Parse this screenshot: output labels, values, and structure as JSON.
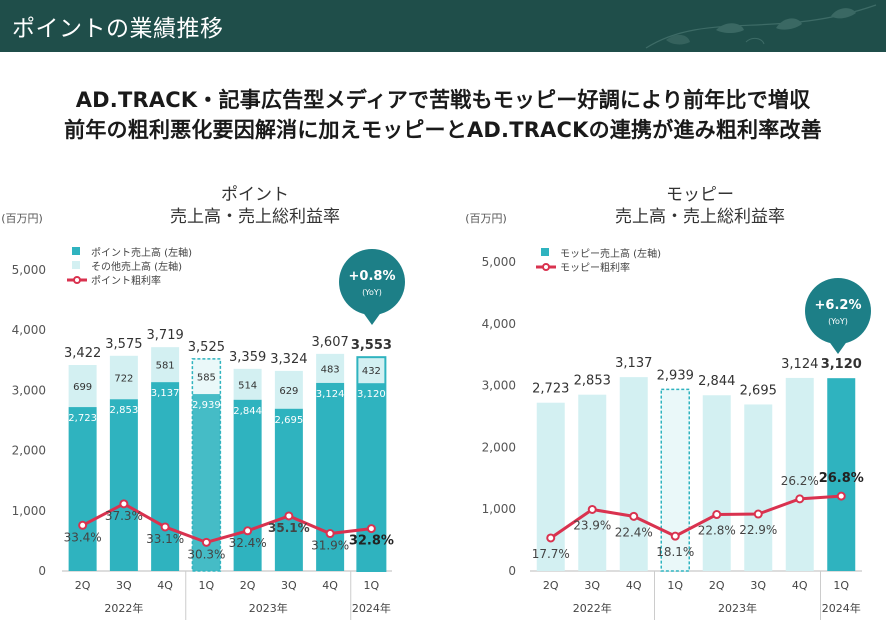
{
  "page": {
    "title": "ポイントの業績推移",
    "headline1": "AD.TRACK・記事広告型メディアで苦戦もモッピー好調により前年比で増収",
    "headline2": "前年の粗利悪化要因解消に加えモッピーとAD.TRACKの連携が進み粗利率改善"
  },
  "colors": {
    "header_bg": "#1f4e4a",
    "teal": "#2fb3bf",
    "light_teal": "#d3f0f2",
    "line_red": "#d9324f",
    "badge": "#1d7f87"
  },
  "chart_data": [
    {
      "type": "bar",
      "title": "ポイント",
      "subtitle": "売上高・売上総利益率",
      "unit": "(百万円)",
      "categories": [
        "2Q",
        "3Q",
        "4Q",
        "1Q",
        "2Q",
        "3Q",
        "4Q",
        "1Q"
      ],
      "year_groups": [
        {
          "label": "2022年",
          "start": 0,
          "end": 2
        },
        {
          "label": "2023年",
          "start": 3,
          "end": 6
        },
        {
          "label": "2024年",
          "start": 7,
          "end": 7
        }
      ],
      "ylim": [
        0,
        5000
      ],
      "yticks": [
        "0",
        "1,000",
        "2,000",
        "3,000",
        "4,000",
        "5,000"
      ],
      "legend": [
        "ポイント売上高 (左軸)",
        "その他売上高 (左軸)",
        "ポイント粗利率"
      ],
      "series": [
        {
          "name": "ポイント売上高 (左軸)",
          "values": [
            2723,
            2853,
            3137,
            2939,
            2844,
            2695,
            3124,
            3120
          ],
          "labels": [
            "2,723",
            "2,853",
            "3,137",
            "2,939",
            "2,844",
            "2,695",
            "3,124",
            "3,120"
          ]
        },
        {
          "name": "その他売上高 (左軸)",
          "values": [
            699,
            722,
            581,
            585,
            514,
            629,
            483,
            432
          ],
          "labels": [
            "699",
            "722",
            "581",
            "585",
            "514",
            "629",
            "483",
            "432"
          ]
        },
        {
          "name": "ポイント粗利率",
          "values": [
            33.4,
            37.3,
            33.1,
            30.3,
            32.4,
            35.1,
            31.9,
            32.8
          ],
          "labels": [
            "33.4%",
            "37.3%",
            "33.1%",
            "30.3%",
            "32.4%",
            "35.1%",
            "31.9%",
            "32.8%"
          ]
        }
      ],
      "totals": [
        "3,422",
        "3,575",
        "3,719",
        "3,525",
        "3,359",
        "3,324",
        "3,607",
        "3,553"
      ],
      "yoy_badge": {
        "value": "+0.8%",
        "label": "(YoY)"
      }
    },
    {
      "type": "bar",
      "title": "モッピー",
      "subtitle": "売上高・売上総利益率",
      "unit": "(百万円)",
      "categories": [
        "2Q",
        "3Q",
        "4Q",
        "1Q",
        "2Q",
        "3Q",
        "4Q",
        "1Q"
      ],
      "year_groups": [
        {
          "label": "2022年",
          "start": 0,
          "end": 2
        },
        {
          "label": "2023年",
          "start": 3,
          "end": 6
        },
        {
          "label": "2024年",
          "start": 7,
          "end": 7
        }
      ],
      "ylim": [
        0,
        5000
      ],
      "yticks": [
        "0",
        "1,000",
        "2,000",
        "3,000",
        "4,000",
        "5,000"
      ],
      "legend": [
        "モッピー売上高 (左軸)",
        "モッピー粗利率"
      ],
      "series": [
        {
          "name": "モッピー売上高 (左軸)",
          "values": [
            2723,
            2853,
            3137,
            2939,
            2844,
            2695,
            3124,
            3120
          ],
          "labels": [
            "2,723",
            "2,853",
            "3,137",
            "2,939",
            "2,844",
            "2,695",
            "3,124",
            "3,120"
          ]
        },
        {
          "name": "モッピー粗利率",
          "values": [
            17.7,
            23.9,
            22.4,
            18.1,
            22.8,
            22.9,
            26.2,
            26.8
          ],
          "labels": [
            "17.7%",
            "23.9%",
            "22.4%",
            "18.1%",
            "22.8%",
            "22.9%",
            "26.2%",
            "26.8%"
          ]
        }
      ],
      "yoy_badge": {
        "value": "+6.2%",
        "label": "(YoY)"
      }
    }
  ]
}
